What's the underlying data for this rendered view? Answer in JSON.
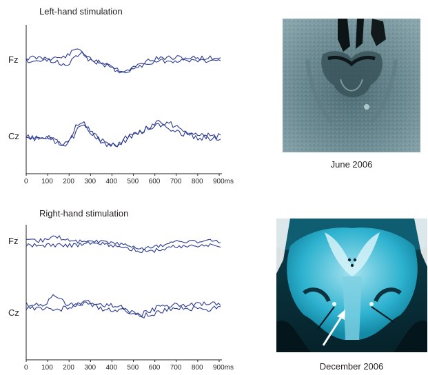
{
  "panels": [
    {
      "title": "Left-hand stimulation",
      "row_labels": [
        "Fz",
        "Cz"
      ],
      "x_ticks": [
        "0",
        "100",
        "200",
        "300",
        "400",
        "500",
        "600",
        "700",
        "800",
        "900ms"
      ]
    },
    {
      "title": "Right-hand stimulation",
      "row_labels": [
        "Fz",
        "Cz"
      ],
      "x_ticks": [
        "0",
        "100",
        "200",
        "300",
        "400",
        "500",
        "600",
        "700",
        "800",
        "900ms"
      ]
    }
  ],
  "images": [
    {
      "caption": "June 2006"
    },
    {
      "caption": "December 2006"
    }
  ],
  "colors": {
    "trace": "#2b3990",
    "axis": "#231f20",
    "scan_top": "#6f8d95",
    "scan_bottom": "#1fa3c4"
  }
}
